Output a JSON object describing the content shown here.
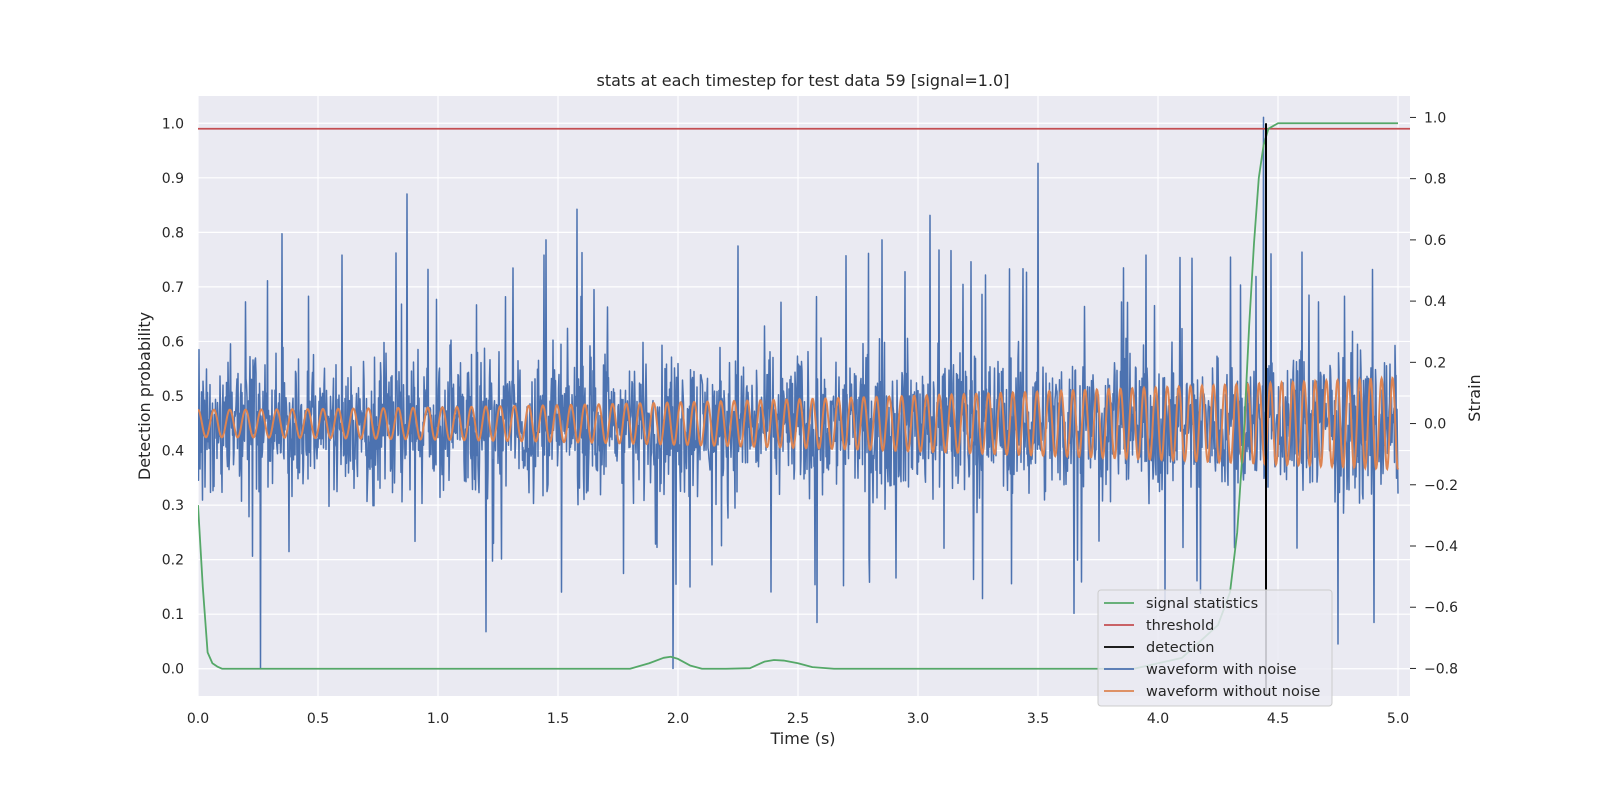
{
  "chart_data": {
    "type": "line",
    "title": "stats at each timestep for test data 59 [signal=1.0]",
    "xlabel": "Time (s)",
    "ylabel": "Detection probability",
    "y2label": "Strain",
    "xlim": [
      0.0,
      5.05
    ],
    "ylim": [
      -0.05,
      1.05
    ],
    "y2lim": [
      -0.89,
      1.07
    ],
    "x_ticks": [
      "0.0",
      "0.5",
      "1.0",
      "1.5",
      "2.0",
      "2.5",
      "3.0",
      "3.5",
      "4.0",
      "4.5",
      "5.0"
    ],
    "y_ticks": [
      "0.0",
      "0.1",
      "0.2",
      "0.3",
      "0.4",
      "0.5",
      "0.6",
      "0.7",
      "0.8",
      "0.9",
      "1.0"
    ],
    "y2_ticks": [
      "−0.8",
      "−0.6",
      "−0.4",
      "−0.2",
      "0.0",
      "0.2",
      "0.4",
      "0.6",
      "0.8",
      "1.0"
    ],
    "grid": true,
    "legend_position": "lower-right",
    "colors": {
      "signal_statistics": "#55a868",
      "threshold": "#c44e52",
      "detection": "#000000",
      "waveform_with_noise": "#4c72b0",
      "waveform_without_noise": "#dd8452",
      "plot_background": "#eaeaf2"
    },
    "series": [
      {
        "name": "signal statistics",
        "axis": "left",
        "x": [
          0.0,
          0.02,
          0.04,
          0.06,
          0.08,
          0.1,
          0.15,
          0.3,
          1.0,
          1.8,
          1.88,
          1.94,
          1.97,
          2.0,
          2.05,
          2.1,
          2.2,
          2.3,
          2.36,
          2.4,
          2.44,
          2.5,
          2.56,
          2.65,
          3.0,
          3.6,
          3.9,
          4.1,
          4.25,
          4.3,
          4.33,
          4.36,
          4.38,
          4.4,
          4.42,
          4.44,
          4.46,
          4.5,
          5.0
        ],
        "y": [
          0.3,
          0.15,
          0.03,
          0.01,
          0.004,
          0.0,
          0.0,
          0.0,
          0.0,
          0.0,
          0.01,
          0.02,
          0.022,
          0.018,
          0.006,
          0.0,
          0.0,
          0.001,
          0.013,
          0.016,
          0.015,
          0.01,
          0.003,
          0.0,
          0.0,
          0.0,
          0.0,
          0.02,
          0.08,
          0.14,
          0.25,
          0.45,
          0.63,
          0.78,
          0.9,
          0.96,
          0.99,
          1.0,
          1.0
        ]
      },
      {
        "name": "threshold",
        "axis": "left",
        "x": [
          0.0,
          5.05
        ],
        "y": [
          0.99,
          0.99
        ]
      },
      {
        "name": "detection",
        "axis": "left",
        "x": [
          4.45,
          4.45
        ],
        "y": [
          -0.05,
          1.0
        ]
      },
      {
        "name": "waveform with noise",
        "axis": "right",
        "x": [
          0.0,
          5.0
        ],
        "y": [
          -0.25,
          0.25
        ],
        "spikes": [
          [
            0.26,
            -0.8
          ],
          [
            0.35,
            0.62
          ],
          [
            0.6,
            0.55
          ],
          [
            0.87,
            0.75
          ],
          [
            1.2,
            -0.68
          ],
          [
            1.45,
            0.6
          ],
          [
            1.58,
            0.7
          ],
          [
            1.98,
            -0.8
          ],
          [
            2.25,
            0.58
          ],
          [
            2.58,
            -0.65
          ],
          [
            2.85,
            0.6
          ],
          [
            3.05,
            0.68
          ],
          [
            3.5,
            0.85
          ],
          [
            3.65,
            -0.62
          ],
          [
            3.95,
            0.55
          ],
          [
            4.03,
            -0.58
          ],
          [
            4.44,
            1.0
          ],
          [
            4.6,
            0.56
          ],
          [
            4.75,
            -0.72
          ],
          [
            4.9,
            -0.65
          ]
        ]
      },
      {
        "name": "waveform without noise",
        "axis": "right",
        "x": [
          0.0,
          5.0
        ],
        "amplitude": [
          0.045,
          0.15
        ],
        "cycles": [
          15,
          22
        ]
      }
    ]
  }
}
